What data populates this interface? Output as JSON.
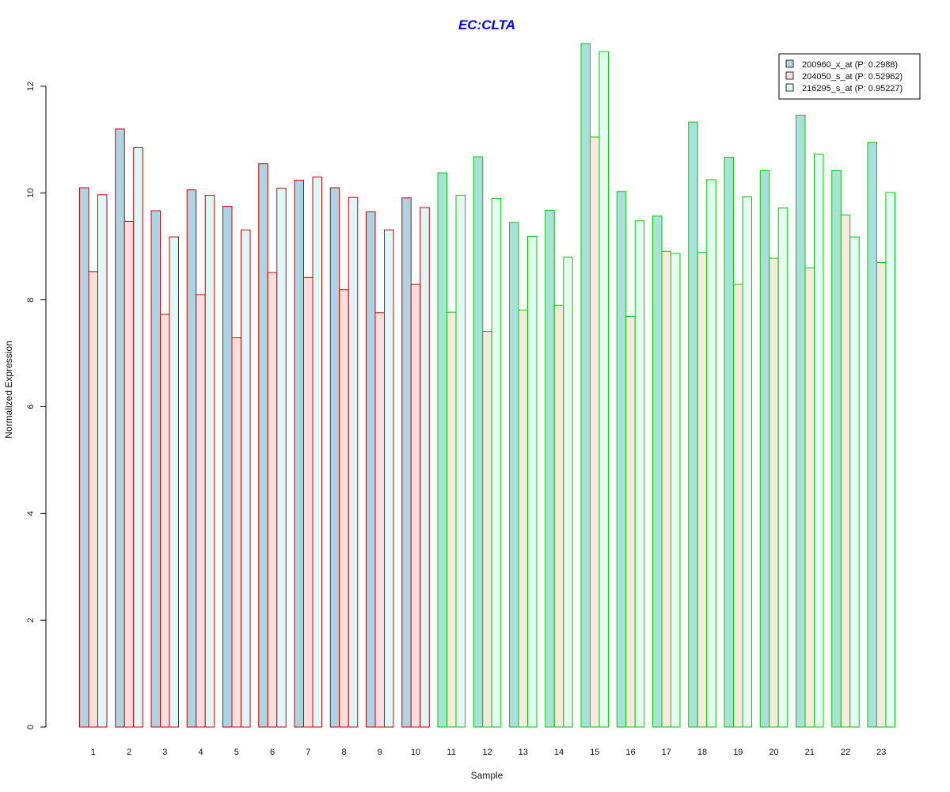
{
  "chart_data": {
    "type": "bar",
    "title": "EC:CLTA",
    "xlabel": "Sample",
    "ylabel": "Normalized Expression",
    "ylim": [
      0,
      12.8
    ],
    "yticks": [
      0,
      2,
      4,
      6,
      8,
      10,
      12
    ],
    "categories": [
      "1",
      "2",
      "3",
      "4",
      "5",
      "6",
      "7",
      "8",
      "9",
      "10",
      "11",
      "12",
      "13",
      "14",
      "15",
      "16",
      "17",
      "18",
      "19",
      "20",
      "21",
      "22",
      "23"
    ],
    "group_outline_colors": [
      "#cc0000",
      "#cc0000",
      "#cc0000",
      "#cc0000",
      "#cc0000",
      "#cc0000",
      "#cc0000",
      "#cc0000",
      "#cc0000",
      "#cc0000",
      "#00cc00",
      "#00cc00",
      "#00cc00",
      "#00cc00",
      "#00cc00",
      "#00cc00",
      "#00cc00",
      "#00cc00",
      "#00cc00",
      "#00cc00",
      "#00cc00",
      "#00cc00",
      "#00cc00"
    ],
    "series": [
      {
        "name": "200960_x_at (P: 0.2988)",
        "fill_group1": "#aed3e2",
        "fill_group2": "#a8e1d8",
        "values": [
          10.1,
          11.2,
          9.67,
          10.06,
          9.75,
          10.55,
          10.24,
          10.1,
          9.65,
          9.91,
          10.38,
          10.68,
          9.45,
          9.68,
          12.8,
          10.03,
          9.57,
          11.33,
          10.67,
          10.42,
          11.46,
          10.42,
          10.95
        ]
      },
      {
        "name": "204050_s_at (P: 0.52962)",
        "fill_group1": "#fddedd",
        "fill_group2": "#f5eadb",
        "values": [
          8.53,
          9.47,
          7.73,
          8.1,
          7.29,
          8.51,
          8.42,
          8.19,
          7.76,
          8.29,
          7.77,
          7.41,
          7.81,
          7.9,
          11.05,
          7.69,
          8.91,
          8.89,
          8.29,
          8.78,
          8.6,
          9.59,
          8.7
        ]
      },
      {
        "name": "216295_s_at (P: 0.95227)",
        "fill_group1": "#e0f7f7",
        "fill_group2": "#e3fdf1",
        "values": [
          9.97,
          10.85,
          9.18,
          9.96,
          9.31,
          10.09,
          10.3,
          9.92,
          9.31,
          9.73,
          9.96,
          9.9,
          9.19,
          8.8,
          12.65,
          9.48,
          8.87,
          10.25,
          9.93,
          9.72,
          10.73,
          9.18,
          10.01
        ]
      }
    ],
    "legend_position": "top-right"
  }
}
